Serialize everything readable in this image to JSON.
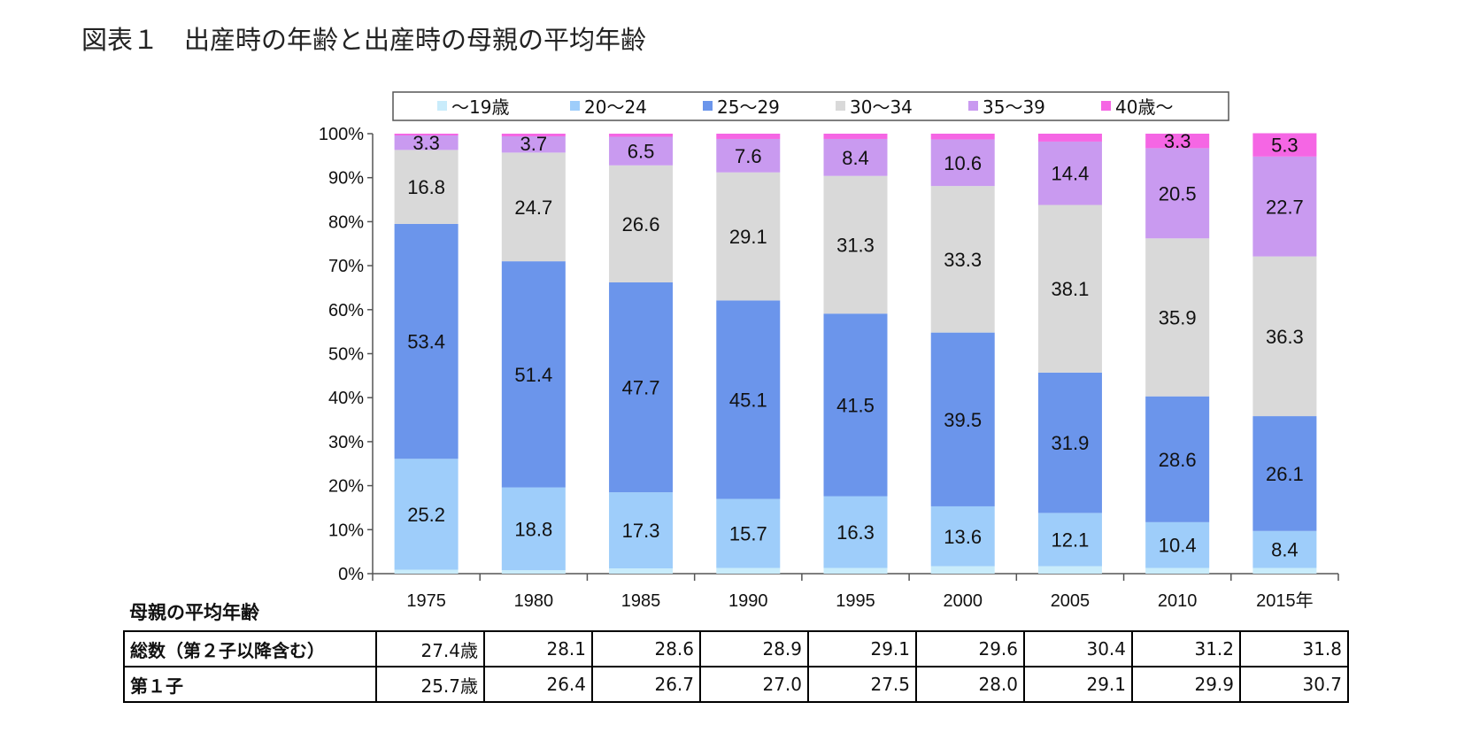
{
  "title": "図表１　出産時の年齢と出産時の母親の平均年齢",
  "chart_data": {
    "type": "bar",
    "stacked": true,
    "categories": [
      "1975",
      "1980",
      "1985",
      "1990",
      "1995",
      "2000",
      "2005",
      "2010",
      "2015年"
    ],
    "ylim": [
      0,
      100
    ],
    "yticks": [
      "0%",
      "10%",
      "20%",
      "30%",
      "40%",
      "50%",
      "60%",
      "70%",
      "80%",
      "90%",
      "100%"
    ],
    "legend_position": "top",
    "series": [
      {
        "name": "～19歳",
        "color": "#c9ecfb",
        "values": [
          0.9,
          0.8,
          1.2,
          1.3,
          1.3,
          1.7,
          1.7,
          1.3,
          1.3
        ],
        "labels": [
          "",
          "",
          "",
          "",
          "",
          "",
          "",
          "",
          ""
        ]
      },
      {
        "name": "20～24",
        "color": "#9ecdfa",
        "values": [
          25.2,
          18.8,
          17.3,
          15.7,
          16.3,
          13.6,
          12.1,
          10.4,
          8.4
        ],
        "labels": [
          "25.2",
          "18.8",
          "17.3",
          "15.7",
          "16.3",
          "13.6",
          "12.1",
          "10.4",
          "8.4"
        ]
      },
      {
        "name": "25～29",
        "color": "#6b95eb",
        "values": [
          53.4,
          51.4,
          47.7,
          45.1,
          41.5,
          39.5,
          31.9,
          28.6,
          26.1
        ],
        "labels": [
          "53.4",
          "51.4",
          "47.7",
          "45.1",
          "41.5",
          "39.5",
          "31.9",
          "28.6",
          "26.1"
        ]
      },
      {
        "name": "30～34",
        "color": "#d9d9d9",
        "values": [
          16.8,
          24.7,
          26.6,
          29.1,
          31.3,
          33.3,
          38.1,
          35.9,
          36.3
        ],
        "labels": [
          "16.8",
          "24.7",
          "26.6",
          "29.1",
          "31.3",
          "33.3",
          "38.1",
          "35.9",
          "36.3"
        ]
      },
      {
        "name": "35～39",
        "color": "#c99af0",
        "values": [
          3.3,
          3.7,
          6.5,
          7.6,
          8.4,
          10.6,
          14.4,
          20.5,
          22.7
        ],
        "labels": [
          "3.3",
          "3.7",
          "6.5",
          "7.6",
          "8.4",
          "10.6",
          "14.4",
          "20.5",
          "22.7"
        ]
      },
      {
        "name": "40歳～",
        "color": "#f566e4",
        "values": [
          0.4,
          0.6,
          0.7,
          1.2,
          1.2,
          1.3,
          1.8,
          3.3,
          5.3
        ],
        "labels": [
          "",
          "",
          "",
          "",
          "",
          "",
          "",
          "3.3",
          "5.3"
        ]
      }
    ]
  },
  "table": {
    "heading": "母親の平均年齢",
    "rows": [
      {
        "label": "総数（第２子以降含む）",
        "values": [
          "27.4歳",
          "28.1",
          "28.6",
          "28.9",
          "29.1",
          "29.6",
          "30.4",
          "31.2",
          "31.8"
        ]
      },
      {
        "label": "第１子",
        "values": [
          "25.7歳",
          "26.4",
          "26.7",
          "27.0",
          "27.5",
          "28.0",
          "29.1",
          "29.9",
          "30.7"
        ]
      }
    ]
  }
}
